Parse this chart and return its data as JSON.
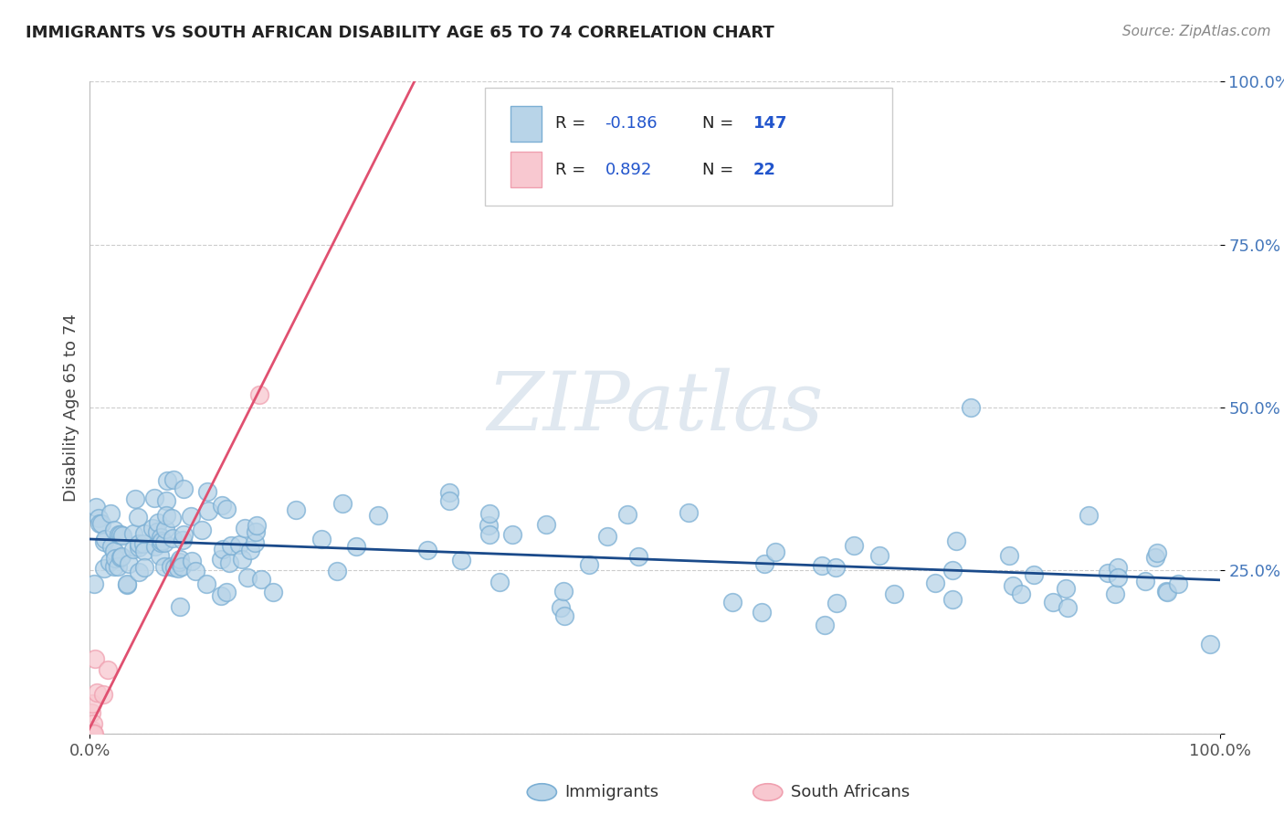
{
  "title": "IMMIGRANTS VS SOUTH AFRICAN DISABILITY AGE 65 TO 74 CORRELATION CHART",
  "source": "Source: ZipAtlas.com",
  "ylabel": "Disability Age 65 to 74",
  "blue_color": "#7BAFD4",
  "blue_fill": "#B8D4E8",
  "pink_color": "#F0A0B0",
  "pink_fill": "#F8C8D0",
  "trend_blue": "#1A4A8A",
  "trend_pink": "#E05070",
  "background": "#FFFFFF",
  "grid_color": "#CCCCCC",
  "ytick_color": "#4477BB",
  "title_color": "#222222",
  "source_color": "#888888",
  "label_color": "#444444",
  "watermark_color": "#E0E8F0",
  "legend_r1_val": "-0.186",
  "legend_n1_val": "147",
  "legend_r2_val": "0.892",
  "legend_n2_val": "22"
}
